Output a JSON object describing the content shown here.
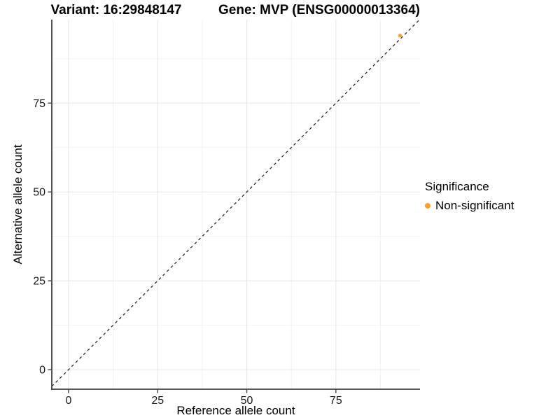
{
  "chart_data": {
    "type": "scatter",
    "title_left": "Variant: 16:29848147",
    "title_right": "Gene: MVP (ENSG00000013364)",
    "xlabel": "Reference allele count",
    "ylabel": "Alternative allele count",
    "xlim": [
      -4.7,
      98.6
    ],
    "ylim": [
      -5.5,
      98.5
    ],
    "xticks": [
      0,
      25,
      50,
      75
    ],
    "yticks": [
      0,
      25,
      50,
      75
    ],
    "minor_xticks": [
      12.5,
      37.5,
      62.5,
      87.5
    ],
    "minor_yticks": [
      12.5,
      37.5,
      62.5,
      87.5
    ],
    "grid": true,
    "identity_line": {
      "equation": "y = x",
      "style": "dashed",
      "dash": [
        4,
        4
      ],
      "color": "#1A1A1A"
    },
    "series": [
      {
        "name": "Non-significant",
        "color": "#F8A02C",
        "points": [
          {
            "x": 93,
            "y": 94
          }
        ]
      }
    ],
    "legend": {
      "title": "Significance",
      "position": "right",
      "items": [
        {
          "label": "Non-significant",
          "color": "#F8A02C"
        }
      ]
    },
    "style": {
      "grid_major": "#E6E6E6",
      "grid_minor": "#F2F2F2",
      "axis_line": "#404040",
      "tick_text": "#1A1A1A",
      "point_radius": 2.6,
      "background": "#FFFFFF"
    }
  }
}
